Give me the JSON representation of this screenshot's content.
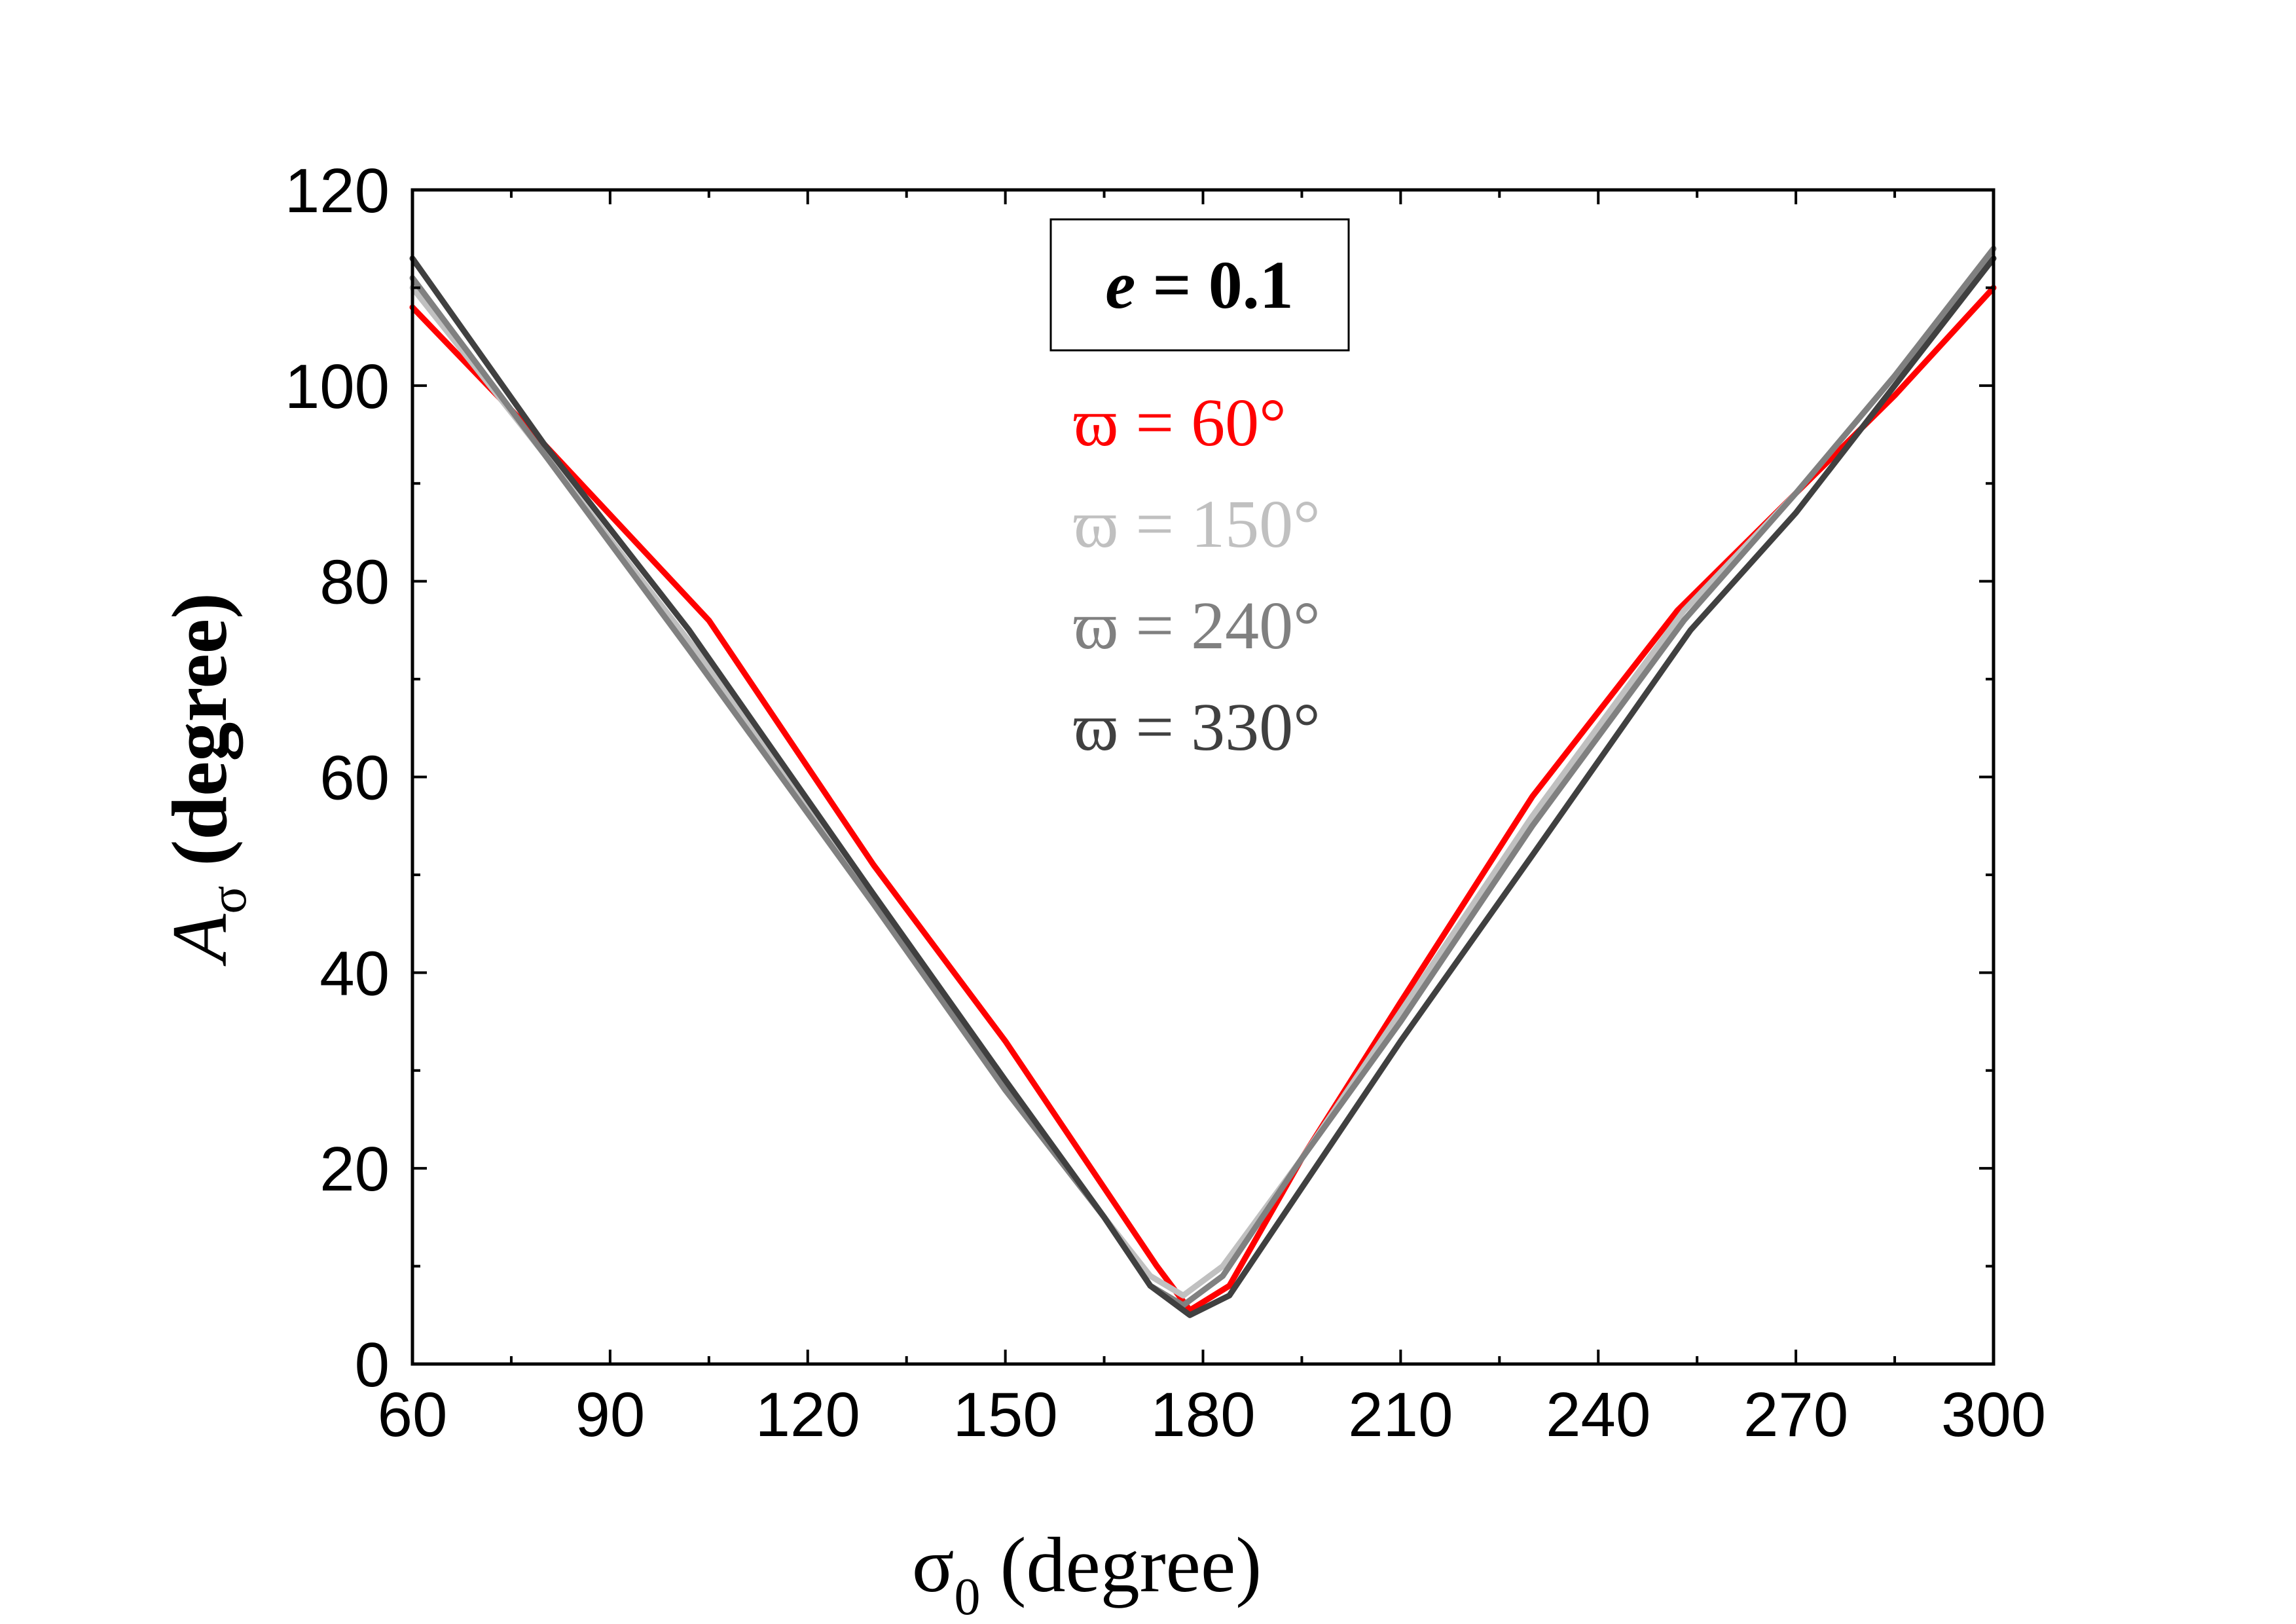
{
  "chart_data": {
    "type": "line",
    "xlabel": {
      "symbol": "σ",
      "sub": "0",
      "unit": "(degree)"
    },
    "ylabel": {
      "symbol": "A",
      "sub": "σ",
      "unit": "(degree)"
    },
    "xlim": [
      60,
      300
    ],
    "ylim": [
      0,
      120
    ],
    "xticks": [
      60,
      90,
      120,
      150,
      180,
      210,
      240,
      270,
      300
    ],
    "yticks": [
      0,
      20,
      40,
      60,
      80,
      100,
      120
    ],
    "grid": false,
    "annotation": {
      "italic": "e",
      "rest": " = 0.1"
    },
    "legend_placement": "top-center",
    "series": [
      {
        "name": "ϖ = 60°",
        "color": "#ff0000",
        "x": [
          60,
          80,
          105,
          130,
          150,
          165,
          173,
          178,
          184,
          195,
          210,
          230,
          252,
          270,
          285,
          300
        ],
        "y": [
          108,
          94,
          76,
          51,
          33,
          18,
          10,
          5.5,
          8,
          21,
          37,
          58,
          77,
          89,
          99,
          110
        ]
      },
      {
        "name": "ϖ = 150°",
        "color": "#c0c0c0",
        "x": [
          60,
          80,
          103,
          130,
          150,
          165,
          172,
          177,
          183,
          195,
          210,
          230,
          253,
          270,
          285,
          300
        ],
        "y": [
          110,
          93,
          73,
          48,
          29,
          15,
          9,
          7,
          10,
          21,
          36,
          56,
          77,
          89,
          101,
          113
        ]
      },
      {
        "name": "ϖ = 240°",
        "color": "#808080",
        "x": [
          60,
          80,
          102,
          130,
          150,
          165,
          172,
          177,
          183,
          195,
          210,
          230,
          253,
          270,
          285,
          300
        ],
        "y": [
          111,
          93,
          73,
          47,
          28,
          15,
          8,
          6,
          9,
          21,
          35,
          55,
          76,
          89,
          101,
          114
        ]
      },
      {
        "name": "ϖ = 330°",
        "color": "#404040",
        "x": [
          60,
          80,
          102,
          130,
          150,
          165,
          172,
          178,
          184,
          195,
          210,
          230,
          254,
          270,
          285,
          300
        ],
        "y": [
          113,
          94,
          75,
          48,
          29,
          15,
          8,
          5,
          7,
          18,
          33,
          52,
          75,
          87,
          100,
          113
        ]
      }
    ]
  }
}
